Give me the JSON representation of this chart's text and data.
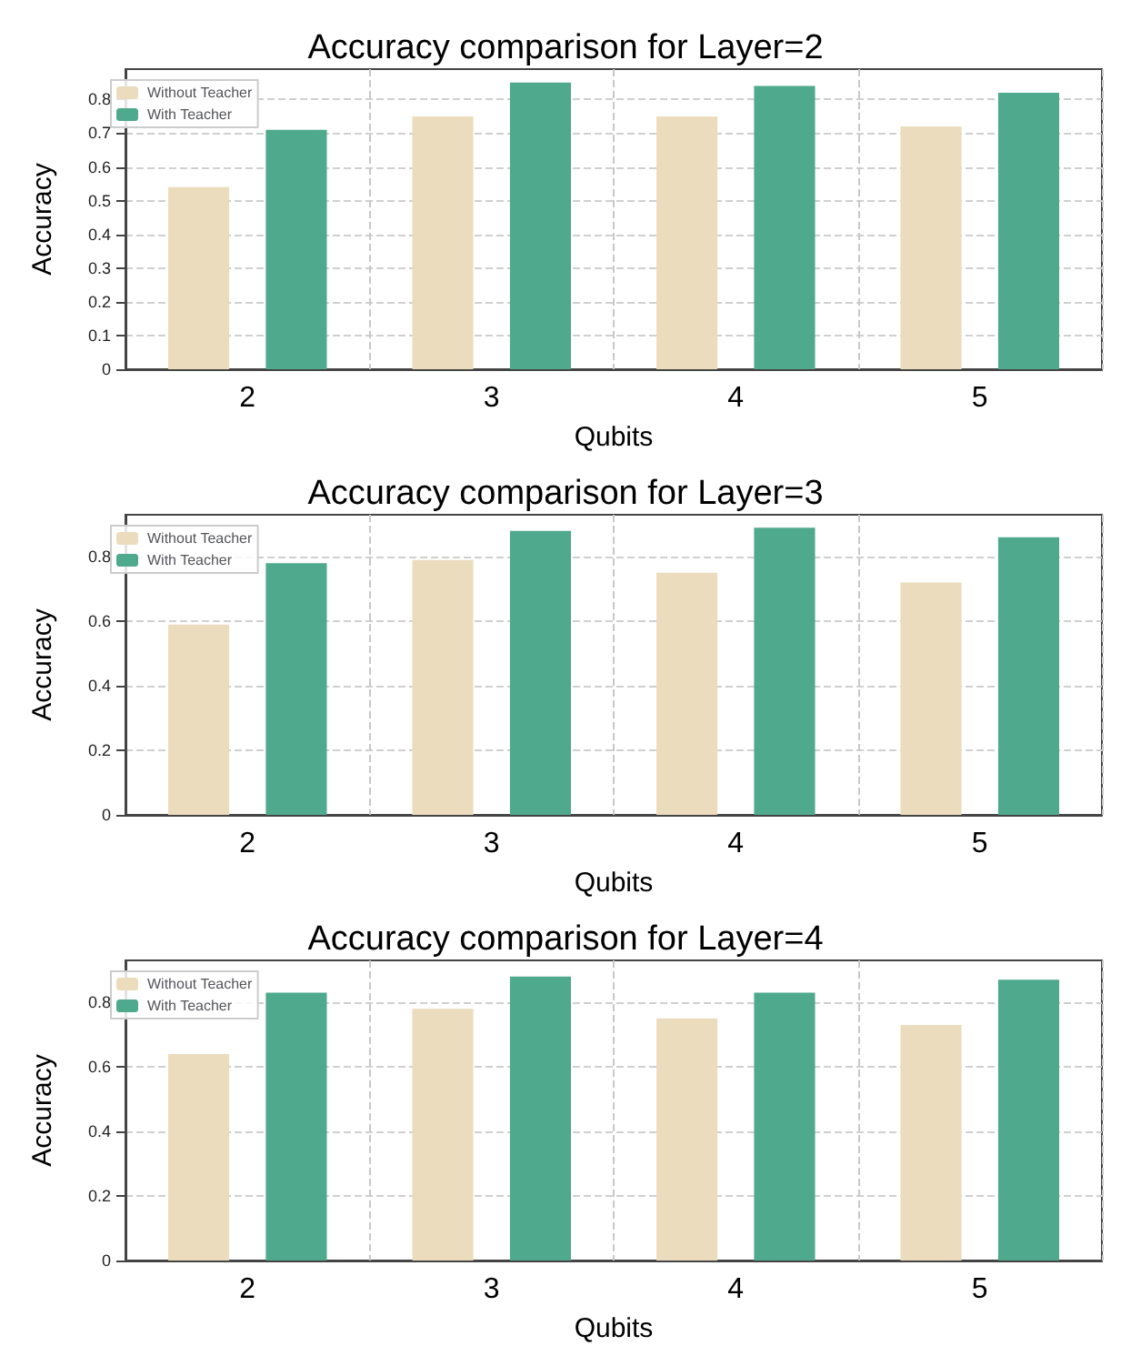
{
  "chart_data": [
    {
      "type": "bar",
      "title": "Accuracy comparison for Layer=2",
      "xlabel": "Qubits",
      "ylabel": "Accuracy",
      "categories": [
        "2",
        "3",
        "4",
        "5"
      ],
      "series": [
        {
          "name": "Without Teacher",
          "color": "#ecdcbe",
          "values": [
            0.54,
            0.75,
            0.75,
            0.72
          ]
        },
        {
          "name": "With Teacher",
          "color": "#4fa98c",
          "values": [
            0.71,
            0.85,
            0.84,
            0.82
          ]
        }
      ],
      "ylim": [
        0,
        0.89
      ],
      "yticks": [
        0,
        0.1,
        0.2,
        0.3,
        0.4,
        0.5,
        0.6,
        0.7,
        0.8
      ],
      "grid": true,
      "legend": "top left"
    },
    {
      "type": "bar",
      "title": "Accuracy comparison for Layer=3",
      "xlabel": "Qubits",
      "ylabel": "Accuracy",
      "categories": [
        "2",
        "3",
        "4",
        "5"
      ],
      "series": [
        {
          "name": "Without Teacher",
          "color": "#ecdcbe",
          "values": [
            0.59,
            0.79,
            0.75,
            0.72
          ]
        },
        {
          "name": "With Teacher",
          "color": "#4fa98c",
          "values": [
            0.78,
            0.88,
            0.89,
            0.86
          ]
        }
      ],
      "ylim": [
        0,
        0.93
      ],
      "yticks": [
        0,
        0.2,
        0.4,
        0.6,
        0.8
      ],
      "grid": true,
      "legend": "top left"
    },
    {
      "type": "bar",
      "title": "Accuracy comparison for Layer=4",
      "xlabel": "Qubits",
      "ylabel": "Accuracy",
      "categories": [
        "2",
        "3",
        "4",
        "5"
      ],
      "series": [
        {
          "name": "Without Teacher",
          "color": "#ecdcbe",
          "values": [
            0.64,
            0.78,
            0.75,
            0.73
          ]
        },
        {
          "name": "With Teacher",
          "color": "#4fa98c",
          "values": [
            0.83,
            0.88,
            0.83,
            0.87
          ]
        }
      ],
      "ylim": [
        0,
        0.93
      ],
      "yticks": [
        0,
        0.2,
        0.4,
        0.6,
        0.8
      ],
      "grid": true,
      "legend": "top left"
    }
  ]
}
